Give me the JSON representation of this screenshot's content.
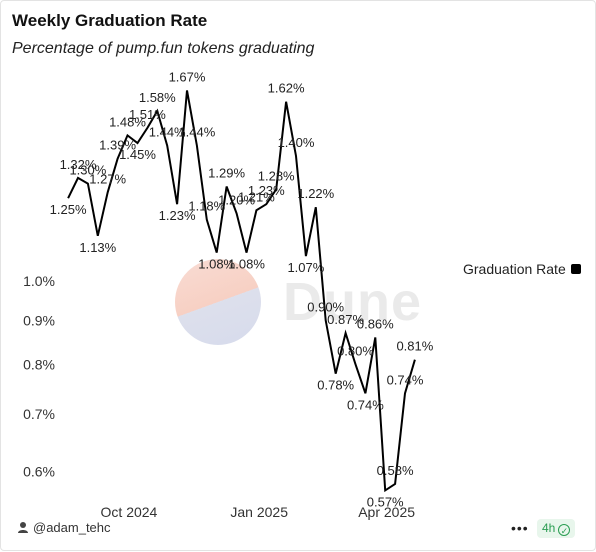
{
  "header": {
    "title": "Weekly Graduation Rate",
    "subtitle": "Percentage of pump.fun tokens graduating"
  },
  "watermark": {
    "text": "Dune"
  },
  "legend": {
    "label": "Graduation Rate",
    "color": "#000000"
  },
  "footer": {
    "author": "@adam_tehc",
    "more_label": "•••",
    "refresh_label": "4h",
    "refresh_color": "#2a9d52"
  },
  "chart_data": {
    "type": "line",
    "title": "Weekly Graduation Rate",
    "subtitle": "Percentage of pump.fun tokens graduating",
    "xlabel": "",
    "ylabel": "",
    "y_scale": "log",
    "ylim": [
      0.56,
      1.75
    ],
    "y_ticks": [
      0.6,
      0.7,
      0.8,
      0.9,
      1.0
    ],
    "y_tick_labels": [
      "0.6%",
      "0.7%",
      "0.8%",
      "0.9%",
      "1.0%"
    ],
    "x_ticks": [
      "2024-10-01",
      "2025-01-01",
      "2025-04-01"
    ],
    "x_tick_labels": [
      "Oct 2024",
      "Jan 2025",
      "Apr 2025"
    ],
    "xlim": [
      "2024-08-14",
      "2025-05-20"
    ],
    "grid": false,
    "legend_position": "right",
    "line_color": "#000000",
    "series": [
      {
        "name": "Graduation Rate",
        "x": [
          "2024-08-19",
          "2024-08-26",
          "2024-09-02",
          "2024-09-09",
          "2024-09-16",
          "2024-09-23",
          "2024-09-30",
          "2024-10-07",
          "2024-10-14",
          "2024-10-21",
          "2024-10-28",
          "2024-11-04",
          "2024-11-11",
          "2024-11-18",
          "2024-11-25",
          "2024-12-02",
          "2024-12-09",
          "2024-12-16",
          "2024-12-23",
          "2024-12-30",
          "2025-01-06",
          "2025-01-13",
          "2025-01-20",
          "2025-01-27",
          "2025-02-03",
          "2025-02-10",
          "2025-02-17",
          "2025-02-24",
          "2025-03-03",
          "2025-03-10",
          "2025-03-17",
          "2025-03-24",
          "2025-03-31",
          "2025-04-07",
          "2025-04-14",
          "2025-04-21"
        ],
        "values": [
          1.25,
          1.32,
          1.3,
          1.13,
          1.27,
          1.39,
          1.48,
          1.45,
          1.51,
          1.58,
          1.44,
          1.23,
          1.67,
          1.44,
          1.18,
          1.08,
          1.29,
          1.2,
          1.08,
          1.21,
          1.23,
          1.28,
          1.62,
          1.4,
          1.07,
          1.22,
          0.9,
          0.78,
          0.87,
          0.8,
          0.74,
          0.86,
          0.57,
          0.58,
          0.74,
          0.81
        ],
        "labels": [
          "1.25%",
          "1.32%",
          "1.30%",
          "1.13%",
          "1.27%",
          "1.39%",
          "1.48%",
          "1.45%",
          "1.51%",
          "1.58%",
          "1.44%",
          "1.23%",
          "1.67%",
          "1.44%",
          "1.18%",
          "1.08%",
          "1.29%",
          "1.20%",
          "1.08%",
          "1.21%",
          "1.23%",
          "1.28%",
          "1.62%",
          "1.40%",
          "1.07%",
          "1.22%",
          "0.90%",
          "0.78%",
          "0.87%",
          "0.80%",
          "0.74%",
          "0.86%",
          "0.57%",
          "0.58%",
          "0.74%",
          "0.81%"
        ]
      }
    ]
  }
}
